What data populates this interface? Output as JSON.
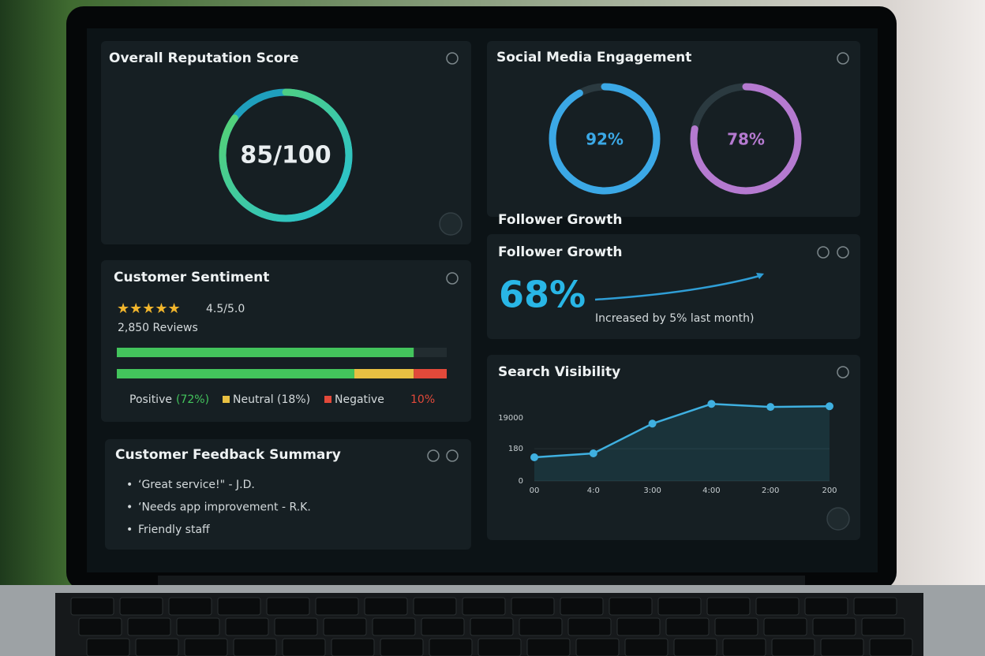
{
  "reputation": {
    "title": "Overall Reputation Score",
    "score": 85,
    "max": 100,
    "score_label": "85/100"
  },
  "social": {
    "title": "Social Media Engagement",
    "rings": [
      {
        "value": 92,
        "label": "92%",
        "color": "#3ba8e6"
      },
      {
        "value": 78,
        "label": "78%",
        "color": "#b57ad0"
      }
    ],
    "caption": "Follower Growth"
  },
  "follower": {
    "title": "Follower Growth",
    "value_label": "68%",
    "note": "Increased by 5% last month)"
  },
  "sentiment": {
    "title": "Customer Sentiment",
    "rating": 4.5,
    "rating_max": 5,
    "rating_label": "4.5/5.0",
    "reviews": "2,850 Reviews",
    "segments": [
      {
        "name": "Positive",
        "label": "(72%)",
        "value": 72,
        "color": "#43c45c"
      },
      {
        "name": "Neutral",
        "label": "(18%)",
        "value": 18,
        "color": "#e8c042"
      },
      {
        "name": "Negative",
        "label": "10%",
        "value": 10,
        "color": "#e2493a"
      }
    ]
  },
  "feedback": {
    "title": "Customer Feedback Summary",
    "items": [
      "‘Great service!\" - J.D.",
      "‘Needs app improvement - R.K.",
      "Friendly staff"
    ]
  },
  "search": {
    "title": "Search Visibility",
    "categories": [
      "00",
      "4:0",
      "3:00",
      "4:00",
      "2:00",
      "200"
    ],
    "values": [
      132,
      154,
      320,
      430,
      413,
      417
    ],
    "ylim": [
      0,
      440
    ],
    "yticks": [
      0,
      180
    ],
    "y_top_label": "19000",
    "color": "#3fb0e0"
  }
}
